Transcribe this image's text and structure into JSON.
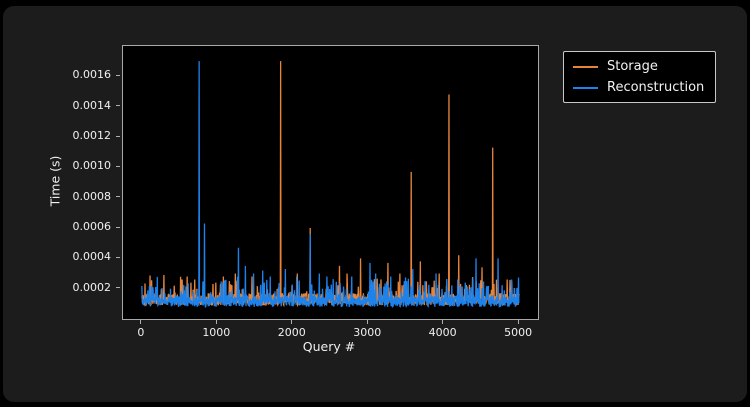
{
  "window": {
    "background": "#000000",
    "panel_background": "#1c1c1c",
    "axes_background": "#000000",
    "spine_color": "#a8a8a8",
    "text_color": "#f0f0f0"
  },
  "chart_data": {
    "type": "line",
    "title": "",
    "xlabel": "Query #",
    "ylabel": "Time (s)",
    "xlim": [
      -250,
      5250
    ],
    "ylim": [
      0,
      0.0018
    ],
    "grid": false,
    "x_ticks": [
      0,
      1000,
      2000,
      3000,
      4000,
      5000
    ],
    "x_tick_labels": [
      "0",
      "1000",
      "2000",
      "3000",
      "4000",
      "5000"
    ],
    "y_ticks": [
      0.0002,
      0.0004,
      0.0006,
      0.0008,
      0.001,
      0.0012,
      0.0014,
      0.0016
    ],
    "y_tick_labels": [
      "0.0002",
      "0.0004",
      "0.0006",
      "0.0008",
      "0.0010",
      "0.0012",
      "0.0014",
      "0.0016"
    ],
    "legend": {
      "position": "upper-right-outside",
      "entries": [
        {
          "label": "Storage",
          "color": "#e6843c"
        },
        {
          "label": "Reconstruction",
          "color": "#1e82eb"
        }
      ]
    },
    "x_range": [
      0,
      5000
    ],
    "n_points": 1200,
    "series": [
      {
        "name": "Storage",
        "color": "#e6843c",
        "linewidth": 1.3,
        "seed": 42,
        "baseline": {
          "min": 9e-05,
          "max": 0.00017,
          "bump_chance": 0.1,
          "bump_max": 0.00013
        },
        "spikes": [
          [
            290,
            0.00029
          ],
          [
            430,
            0.00022
          ],
          [
            520,
            0.00026
          ],
          [
            600,
            0.00028
          ],
          [
            650,
            0.00024
          ],
          [
            700,
            0.00026
          ],
          [
            980,
            0.00024
          ],
          [
            1080,
            0.00028
          ],
          [
            1160,
            0.00025
          ],
          [
            1240,
            0.0003
          ],
          [
            1460,
            0.00028
          ],
          [
            1840,
            0.0017
          ],
          [
            2060,
            0.0003
          ],
          [
            2230,
            0.0006
          ],
          [
            2620,
            0.00035
          ],
          [
            2720,
            0.0003
          ],
          [
            2900,
            0.0004
          ],
          [
            3260,
            0.00037
          ],
          [
            3420,
            0.0003
          ],
          [
            3570,
            0.00097
          ],
          [
            3690,
            0.00038
          ],
          [
            3940,
            0.0003
          ],
          [
            4070,
            0.00148
          ],
          [
            4200,
            0.00042
          ],
          [
            4510,
            0.00034
          ],
          [
            4650,
            0.00113
          ],
          [
            4840,
            0.00026
          ],
          [
            4900,
            0.00025
          ]
        ]
      },
      {
        "name": "Reconstruction",
        "color": "#1e82eb",
        "linewidth": 1.3,
        "seed": 7,
        "baseline": {
          "min": 8e-05,
          "max": 0.00015,
          "bump_chance": 0.16,
          "bump_max": 0.00014
        },
        "spikes": [
          [
            150,
            0.00018
          ],
          [
            380,
            0.0002
          ],
          [
            760,
            0.0017
          ],
          [
            830,
            0.00063
          ],
          [
            1280,
            0.00047
          ],
          [
            1370,
            0.00035
          ],
          [
            1480,
            0.0003
          ],
          [
            1600,
            0.00032
          ],
          [
            1700,
            0.00028
          ],
          [
            1900,
            0.00033
          ],
          [
            2050,
            0.00028
          ],
          [
            2230,
            0.00056
          ],
          [
            2350,
            0.0003
          ],
          [
            2450,
            0.00028
          ],
          [
            2780,
            0.00028
          ],
          [
            3025,
            0.00037
          ],
          [
            3100,
            0.0003
          ],
          [
            3300,
            0.00028
          ],
          [
            3590,
            0.00033
          ],
          [
            3755,
            0.00025
          ],
          [
            3900,
            0.0003
          ],
          [
            4430,
            0.0004
          ],
          [
            4720,
            0.0004
          ],
          [
            4900,
            0.00026
          ]
        ]
      }
    ]
  }
}
